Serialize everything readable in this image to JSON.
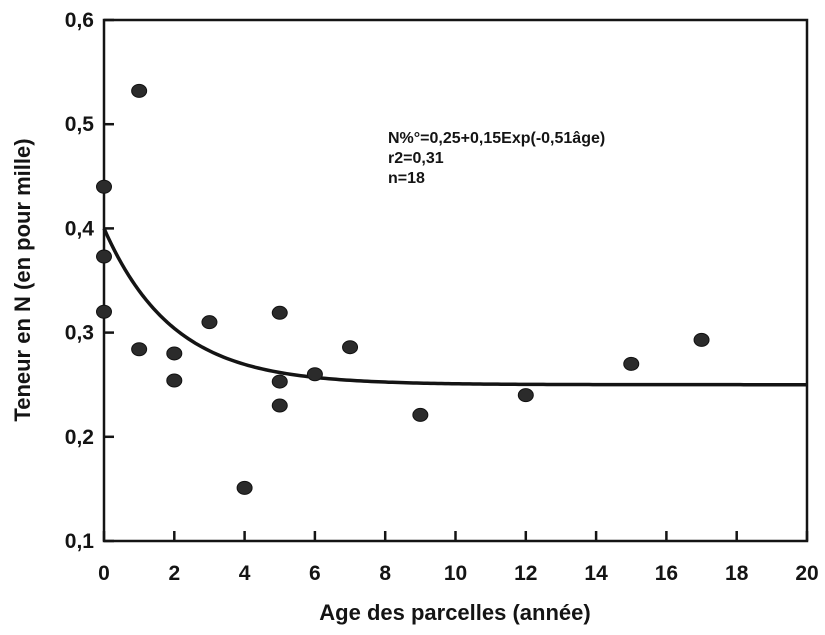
{
  "chart_data": {
    "type": "scatter",
    "title": "",
    "xlabel": "Age des parcelles (année)",
    "ylabel": "Teneur en N (en pour mille)",
    "xlim": [
      0,
      20
    ],
    "ylim": [
      0.1,
      0.6
    ],
    "x_ticks": [
      0,
      2,
      4,
      6,
      8,
      10,
      12,
      14,
      16,
      18,
      20
    ],
    "x_tick_labels": [
      "0",
      "2",
      "4",
      "6",
      "8",
      "10",
      "12",
      "14",
      "16",
      "18",
      "20"
    ],
    "y_ticks": [
      0.1,
      0.2,
      0.3,
      0.4,
      0.5,
      0.6
    ],
    "y_tick_labels": [
      "0,1",
      "0,2",
      "0,3",
      "0,4",
      "0,5",
      "0,6"
    ],
    "grid": false,
    "series": [
      {
        "marker": "filled-circle",
        "color": "#2b2b2b",
        "points": [
          {
            "x": 0,
            "y": 0.44
          },
          {
            "x": 0,
            "y": 0.373
          },
          {
            "x": 0,
            "y": 0.32
          },
          {
            "x": 1,
            "y": 0.532
          },
          {
            "x": 1,
            "y": 0.284
          },
          {
            "x": 2,
            "y": 0.28
          },
          {
            "x": 2,
            "y": 0.254
          },
          {
            "x": 3,
            "y": 0.31
          },
          {
            "x": 4,
            "y": 0.151
          },
          {
            "x": 5,
            "y": 0.319
          },
          {
            "x": 5,
            "y": 0.253
          },
          {
            "x": 5,
            "y": 0.23
          },
          {
            "x": 6,
            "y": 0.26
          },
          {
            "x": 7,
            "y": 0.286
          },
          {
            "x": 9,
            "y": 0.221
          },
          {
            "x": 12,
            "y": 0.24
          },
          {
            "x": 15,
            "y": 0.27
          },
          {
            "x": 17,
            "y": 0.293
          }
        ]
      }
    ],
    "fit_curve": {
      "equation": "N%°=0,25+0,15Exp(-0,51âge)",
      "a": 0.25,
      "b": 0.15,
      "k": 0.51,
      "x_range": [
        0,
        20
      ],
      "color": "#141414"
    },
    "annotations": [
      "N%°=0,25+0,15Exp(-0,51âge)",
      "r2=0,31",
      "n=18"
    ],
    "colors": {
      "axis": "#141414",
      "marker": "#2b2b2b",
      "curve": "#141414"
    }
  }
}
